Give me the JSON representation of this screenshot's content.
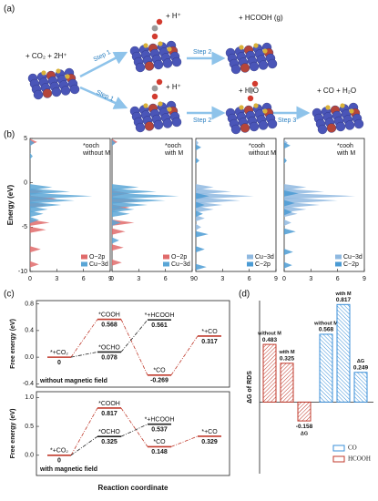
{
  "panel_labels": [
    "(a)",
    "(b)",
    "(c)",
    "(d)"
  ],
  "diagram": {
    "reactant": "+ CO₂ + 2H⁺",
    "steps": [
      "Step 1",
      "Step 1",
      "Step 2",
      "Step 2",
      "Step 3"
    ],
    "products": [
      "+ H⁺",
      "+ HCOOH (g)",
      "+ H⁺",
      "+ H₂O",
      "+ CO + H₂O"
    ]
  },
  "chart_data": [
    {
      "type": "dos",
      "title": "*ooch",
      "subtitle": "without M",
      "y_label": "Energy (eV)",
      "xlim": [
        0,
        9
      ],
      "xticks": [
        0,
        3,
        6,
        9
      ],
      "ylim": [
        -10,
        5
      ],
      "yticks": [
        5,
        0,
        -5,
        -10
      ],
      "series": [
        {
          "name": "O−2p",
          "color": "#e06b6b",
          "energies": [
            4.6,
            -1,
            -1.8,
            -2.5,
            -4.5,
            -5.3,
            -7.5,
            -9.2
          ],
          "values": [
            0.8,
            1.5,
            3,
            2,
            2.2,
            1.8,
            1.2,
            1
          ]
        },
        {
          "name": "Cu−3d",
          "color": "#5aa6d6",
          "energies": [
            4.5,
            3,
            -0.5,
            -1,
            -1.5,
            -2,
            -2.5,
            -3,
            -3.5,
            -4.2
          ],
          "values": [
            0.5,
            0.3,
            2.5,
            4.5,
            7,
            5,
            3.5,
            2,
            1.5,
            1
          ]
        }
      ]
    },
    {
      "type": "dos",
      "title": "*ooch",
      "subtitle": "with M",
      "xlim": [
        0,
        9
      ],
      "xticks": [
        0,
        3,
        6,
        9
      ],
      "ylim": [
        -10,
        5
      ],
      "series": [
        {
          "name": "O−2p",
          "color": "#e06b6b",
          "energies": [
            4.6,
            -1.2,
            -2,
            -2.8,
            -4.5,
            -5.5,
            -7.3,
            -9
          ],
          "values": [
            0.6,
            2,
            3.2,
            2,
            2.5,
            1.5,
            1.3,
            1.1
          ]
        },
        {
          "name": "Cu−3d",
          "color": "#5aa6d6",
          "energies": [
            4.5,
            -0.5,
            -1,
            -1.5,
            -2,
            -2.5,
            -3,
            -3.5,
            -4.5,
            -6.5
          ],
          "values": [
            0.4,
            3,
            5,
            7.5,
            6,
            4,
            2.5,
            2,
            1,
            0.8
          ]
        }
      ]
    },
    {
      "type": "dos",
      "title": "*cooh",
      "subtitle": "without M",
      "xlim": [
        0,
        9
      ],
      "xticks": [
        0,
        3,
        6,
        9
      ],
      "ylim": [
        -10,
        5
      ],
      "series": [
        {
          "name": "Cu−3d",
          "color": "#8fb9e0",
          "energies": [
            4.5,
            -0.5,
            -1,
            -1.5,
            -2,
            -2.5,
            -3,
            -4,
            -5
          ],
          "values": [
            0.3,
            2,
            4,
            6.5,
            5,
            3,
            2,
            1,
            0.6
          ]
        },
        {
          "name": "C−2p",
          "color": "#4b9bd4",
          "energies": [
            4,
            2.5,
            -1.5,
            -2.5,
            -3.5,
            -5.8,
            -7.5,
            -9.5
          ],
          "values": [
            0.6,
            0.4,
            1.5,
            1,
            0.8,
            1.4,
            1,
            1.2
          ]
        }
      ]
    },
    {
      "type": "dos",
      "title": "*cooh",
      "subtitle": "with M",
      "xlim": [
        0,
        9
      ],
      "xticks": [
        0,
        3,
        6,
        9
      ],
      "ylim": [
        -10,
        5
      ],
      "series": [
        {
          "name": "Cu−3d",
          "color": "#8fb9e0",
          "energies": [
            4.5,
            -0.5,
            -1,
            -1.5,
            -2,
            -2.5,
            -3,
            -3.5,
            -4.5
          ],
          "values": [
            0.4,
            2.5,
            4.5,
            8,
            6,
            4,
            2.5,
            1.5,
            0.8
          ]
        },
        {
          "name": "C−2p",
          "color": "#4b9bd4",
          "energies": [
            4.2,
            2.5,
            -1.2,
            -2.3,
            -3.3,
            -5.5,
            -7.8,
            -9.3
          ],
          "values": [
            0.7,
            0.3,
            1.6,
            1.2,
            0.9,
            1.3,
            1,
            0.9
          ]
        }
      ]
    },
    {
      "type": "energy",
      "title": "without magnetic field",
      "y_label": "Free energy (eV)",
      "ylim": [
        -0.45,
        0.85
      ],
      "yticks": [
        0.8,
        0.4,
        {
          "value": 0,
          "label": "0.0"
        },
        -0.4
      ],
      "series": [
        {
          "color": "#c0392b",
          "x": [
            0,
            1,
            2,
            3
          ],
          "states": [
            "*+CO₂",
            "*COOH",
            "*CO",
            "*+CO"
          ],
          "values": [
            0,
            0.568,
            -0.269,
            0.317
          ]
        },
        {
          "color": "#222222",
          "x": [
            1,
            2
          ],
          "states": [
            "*OCHO",
            "*+HCOOH"
          ],
          "values": [
            0.078,
            0.561
          ]
        }
      ]
    },
    {
      "type": "energy",
      "title": "with magnetic field",
      "y_label": "Free energy (eV)",
      "x_label": "Reaction coordinate",
      "ylim": [
        -0.35,
        1.1
      ],
      "yticks": [
        {
          "value": 1,
          "label": "1.0"
        },
        0.5,
        {
          "value": 0,
          "label": "0.0"
        }
      ],
      "series": [
        {
          "color": "#c0392b",
          "x": [
            0,
            1,
            2,
            3
          ],
          "states": [
            "*+CO₂",
            "*COOH",
            "*CO",
            "*+CO"
          ],
          "values": [
            0,
            0.817,
            0.148,
            0.329
          ]
        },
        {
          "color": "#222222",
          "x": [
            1,
            2
          ],
          "states": [
            "*OCHO",
            "*+HCOOH"
          ],
          "values": [
            0.325,
            0.537
          ]
        }
      ]
    },
    {
      "type": "bar",
      "y_label": "ΔG of RDS",
      "ylim": [
        -0.6,
        0.85
      ],
      "categories": [
        "without M",
        "with M",
        "ΔG"
      ],
      "legend": "lower right",
      "series": [
        {
          "name": "HCOOH",
          "color": "#c0392b",
          "values": [
            0.483,
            0.325,
            -0.158
          ]
        },
        {
          "name": "CO",
          "color": "#3a8fd8",
          "values": [
            0.568,
            0.817,
            0.249
          ]
        }
      ]
    }
  ]
}
